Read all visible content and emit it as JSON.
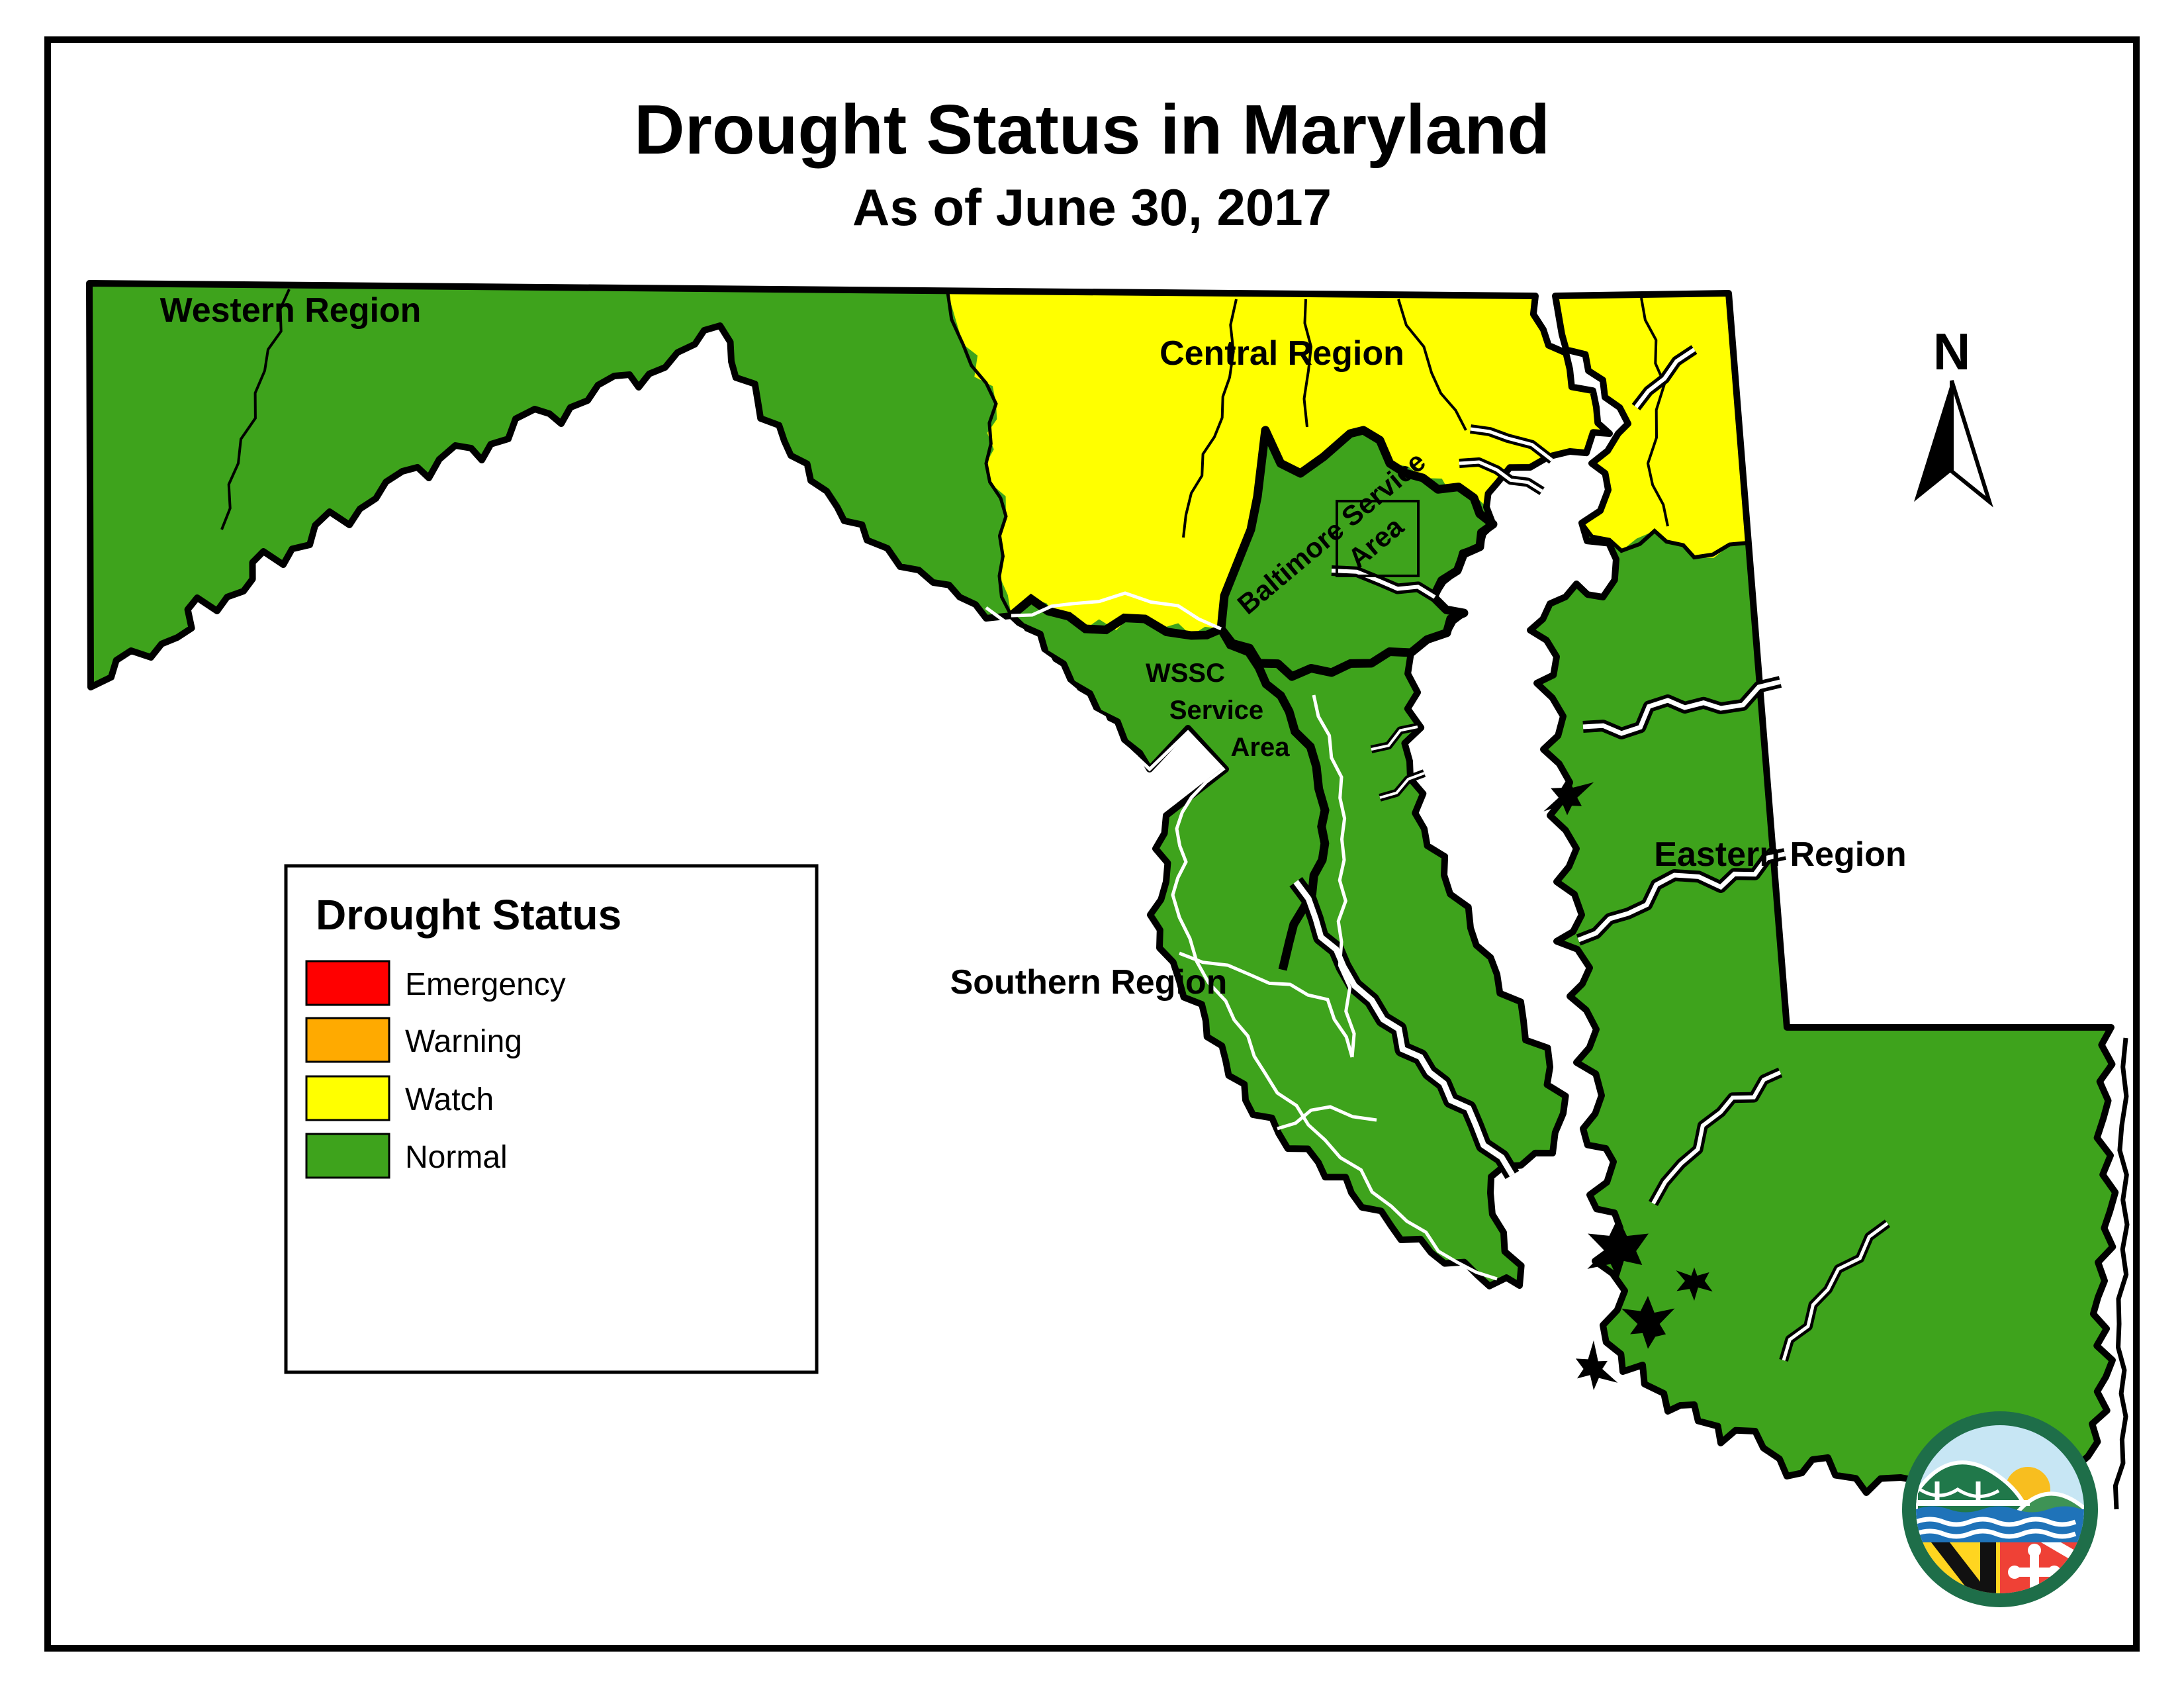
{
  "title": "Drought Status in Maryland",
  "subtitle": "As of June 30, 2017",
  "north_arrow": {
    "label": "N"
  },
  "legend": {
    "title": "Drought Status",
    "items": [
      {
        "label": "Emergency",
        "color": "#FF0000"
      },
      {
        "label": "Warning",
        "color": "#FFAA00"
      },
      {
        "label": "Watch",
        "color": "#FFFF00"
      },
      {
        "label": "Normal",
        "color": "#3EA31C"
      }
    ]
  },
  "map": {
    "status_colors": {
      "emergency": "#FF0000",
      "warning": "#FFAA00",
      "watch": "#FFFF00",
      "normal": "#3EA31C",
      "water": "#FFFFFF",
      "boundary": "#000000"
    },
    "region_labels": {
      "western": "Western Region",
      "central": "Central Region",
      "eastern": "Eastern Region",
      "southern": "Southern Region"
    },
    "service_area_labels": {
      "baltimore_line1": "Baltimore Service",
      "baltimore_line2": "Area",
      "wssc_line1": "WSSC",
      "wssc_line2": "Service",
      "wssc_line3": "Area"
    },
    "region_status": {
      "western_region": "Normal",
      "central_region": "Watch",
      "eastern_region": "Normal",
      "southern_region": "Normal",
      "baltimore_service_area": "Normal",
      "wssc_service_area": "Normal"
    }
  },
  "logo": {
    "ring": "#1E6E49",
    "sky": "#C7E6F4",
    "hill_left": "#20784A",
    "hill_right": "#3E9355",
    "sun": "#F8BE1F",
    "water": "#1F73B9",
    "flag_yellow": "#FFD520",
    "flag_red": "#EF4136",
    "flag_black": "#111111"
  }
}
